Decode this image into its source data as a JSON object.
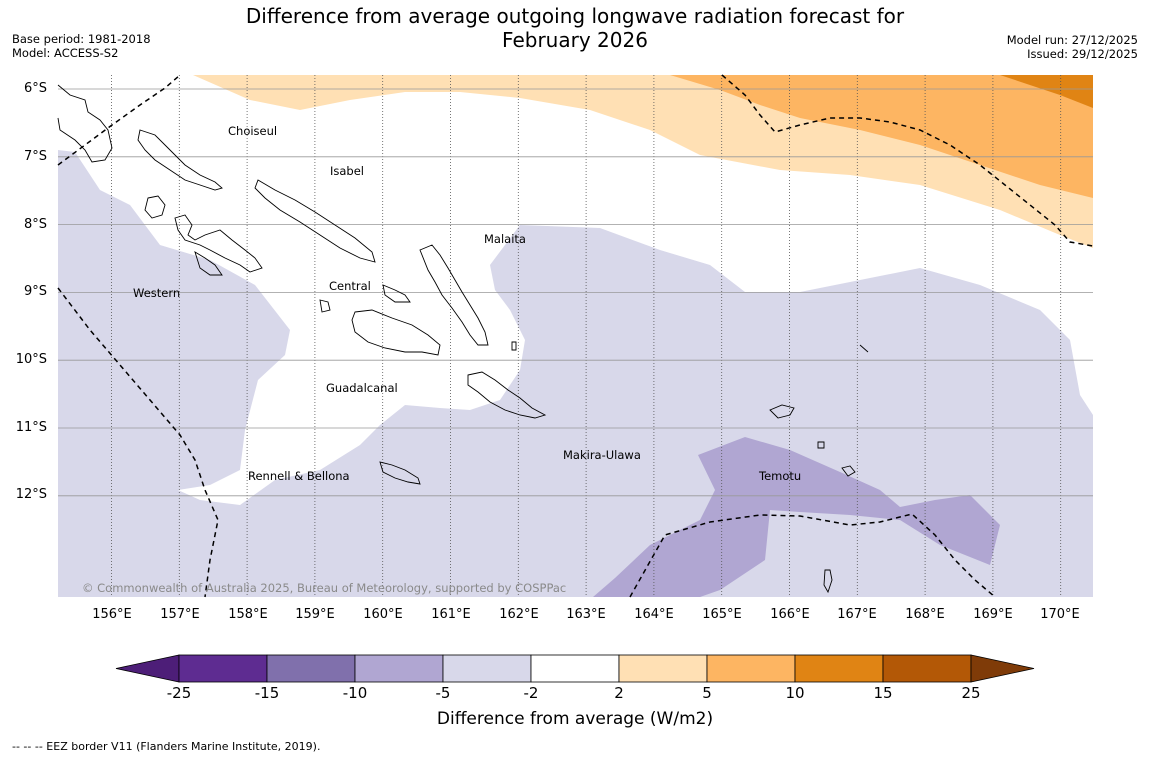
{
  "header": {
    "title_line1": "Difference from average outgoing longwave radiation forecast for",
    "title_line2": "February 2026",
    "base_period": "Base period: 1981-2018",
    "model": "Model: ACCESS-S2",
    "model_run": "Model run: 27/12/2025",
    "issued": "Issued: 29/12/2025"
  },
  "map": {
    "lat_labels": [
      "6°S",
      "7°S",
      "8°S",
      "9°S",
      "10°S",
      "11°S",
      "12°S"
    ],
    "lon_labels": [
      "156°E",
      "157°E",
      "158°E",
      "159°E",
      "160°E",
      "161°E",
      "162°E",
      "163°E",
      "164°E",
      "165°E",
      "166°E",
      "167°E",
      "168°E",
      "169°E",
      "170°E"
    ],
    "regions": {
      "choiseul": "Choiseul",
      "isabel": "Isabel",
      "malaita": "Malaita",
      "western": "Western",
      "central": "Central",
      "guadalcanal": "Guadalcanal",
      "makira": "Makira-Ulawa",
      "temotu": "Temotu",
      "rennell": "Rennell & Bellona"
    },
    "copyright": "© Commonwealth of Australia 2025, Bureau of Meteorology, supported by COSPPac"
  },
  "colorbar": {
    "ticks": [
      "-25",
      "-15",
      "-10",
      "-5",
      "-2",
      "2",
      "5",
      "10",
      "15",
      "25"
    ],
    "colors": [
      "#4d1e78",
      "#5e2c91",
      "#8070ac",
      "#b0a6d2",
      "#d8d8ea",
      "#ffffff",
      "#ffe0b4",
      "#fdb562",
      "#e08414",
      "#b35806",
      "#7f3b08"
    ],
    "label": "Difference from average (W/m2)"
  },
  "footer": {
    "eez_note": "--  --  -- EEZ border V11 (Flanders Marine Institute, 2019)."
  }
}
